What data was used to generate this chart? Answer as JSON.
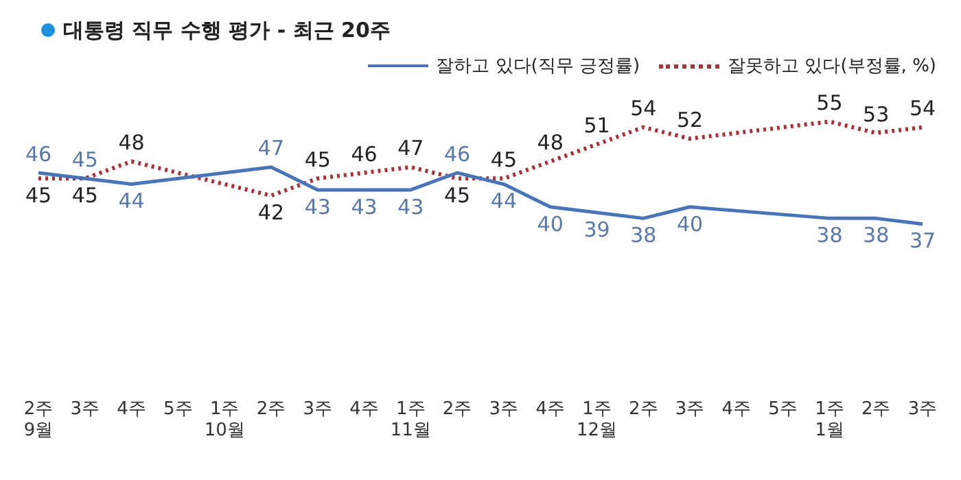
{
  "chart_data": {
    "type": "line",
    "title": "대통령 직무 수행 평가 - 최근 20주",
    "categories": [
      "2주\n9월",
      "3주",
      "4주",
      "5주",
      "1주\n10월",
      "2주",
      "3주",
      "4주",
      "1주\n11월",
      "2주",
      "3주",
      "4주",
      "1주\n12월",
      "2주",
      "3주",
      "4주",
      "5주",
      "1주\n1월",
      "2주",
      "3주"
    ],
    "series": [
      {
        "name": "잘하고 있다(직무 긍정률)",
        "color": "#4a74b8",
        "line_style": "solid",
        "values": [
          46,
          45,
          44,
          null,
          null,
          47,
          43,
          43,
          43,
          46,
          44,
          40,
          39,
          38,
          40,
          null,
          null,
          38,
          38,
          37
        ]
      },
      {
        "name": "잘못하고 있다(부정률, %)",
        "color": "#a8323a",
        "line_style": "dotted",
        "values": [
          45,
          45,
          48,
          null,
          null,
          42,
          45,
          46,
          47,
          45,
          45,
          48,
          51,
          54,
          52,
          null,
          null,
          55,
          53,
          54
        ]
      }
    ],
    "data_labels": true,
    "legend": "top right",
    "grid": false,
    "marker": "none"
  }
}
